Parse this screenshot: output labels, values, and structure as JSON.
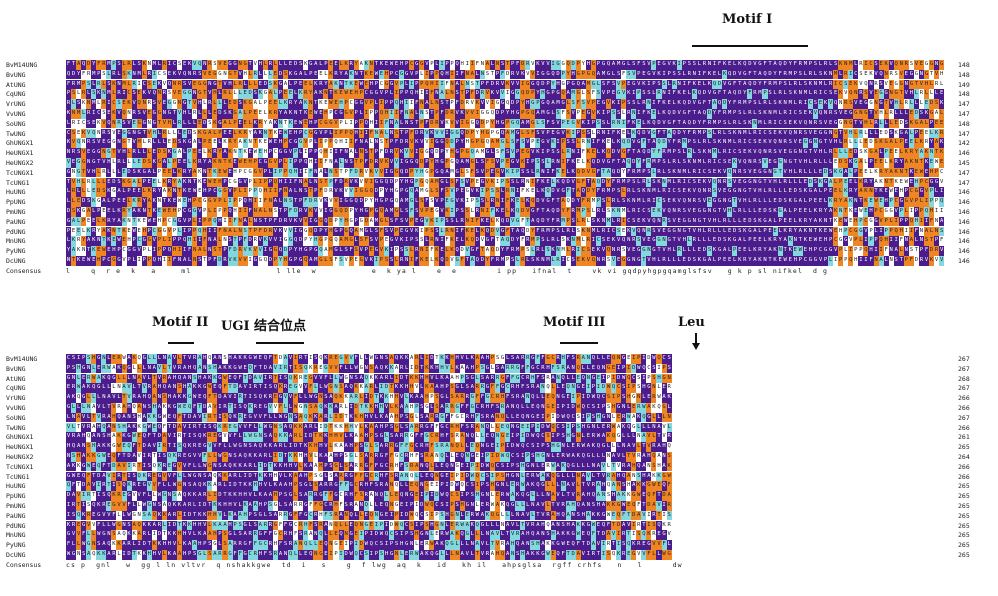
{
  "block1": {
    "motifs": [
      {
        "label": "Motif I"
      }
    ],
    "rows": [
      {
        "name": "BvM14UNG",
        "num": "148"
      },
      {
        "name": "BvUNG",
        "num": "148"
      },
      {
        "name": "AtUNG",
        "num": "149"
      },
      {
        "name": "CqUNG",
        "num": "148"
      },
      {
        "name": "VrUNG",
        "num": "147"
      },
      {
        "name": "VvUNG",
        "num": "147"
      },
      {
        "name": "SoUNG",
        "num": "148"
      },
      {
        "name": "TwUNG",
        "num": "147"
      },
      {
        "name": "GhUNGX1",
        "num": "142"
      },
      {
        "name": "HeUNGX1",
        "num": "146"
      },
      {
        "name": "HeUNGX2",
        "num": "145"
      },
      {
        "name": "TcUNGX1",
        "num": "147"
      },
      {
        "name": "TcUNG1",
        "num": "147"
      },
      {
        "name": "HuUNG",
        "num": "146"
      },
      {
        "name": "PpUNG",
        "num": "146"
      },
      {
        "name": "PmUNG",
        "num": "146"
      },
      {
        "name": "PaUNG",
        "num": "146"
      },
      {
        "name": "PdUNG",
        "num": "146"
      },
      {
        "name": "MnUNG",
        "num": "146"
      },
      {
        "name": "PyUNG",
        "num": "146"
      },
      {
        "name": "DcUNG",
        "num": "146"
      }
    ],
    "consensus_label": "Consensus",
    "consensus": "l    q  r e  k   a     ml                 l lle  w           e  k ya l    e  e        i pp   ifnal  t    vk vi gqdpyhgpgqamglsfsv   g k p sl nifkel  d g"
  },
  "block2": {
    "motifs": [
      {
        "label": "Motif II"
      },
      {
        "label": "UGI 结合位点"
      },
      {
        "label": "Motif III"
      },
      {
        "label": "Leu"
      }
    ],
    "rows": [
      {
        "name": "BvM14UNG",
        "num": "267"
      },
      {
        "name": "BvUNG",
        "num": "267"
      },
      {
        "name": "AtUNG",
        "num": "268"
      },
      {
        "name": "CqUNG",
        "num": "267"
      },
      {
        "name": "VrUNG",
        "num": "266"
      },
      {
        "name": "VvUNG",
        "num": "266"
      },
      {
        "name": "SoUNG",
        "num": "267"
      },
      {
        "name": "TwUNG",
        "num": "266"
      },
      {
        "name": "GhUNGX1",
        "num": "261"
      },
      {
        "name": "HeUNGX1",
        "num": "265"
      },
      {
        "name": "HeUNGX2",
        "num": "264"
      },
      {
        "name": "TcUNGX1",
        "num": "266"
      },
      {
        "name": "TcUNG1",
        "num": "266"
      },
      {
        "name": "HuUNG",
        "num": "265"
      },
      {
        "name": "PpUNG",
        "num": "265"
      },
      {
        "name": "PmUNG",
        "num": "265"
      },
      {
        "name": "PaUNG",
        "num": "265"
      },
      {
        "name": "PdUNG",
        "num": "265"
      },
      {
        "name": "MnUNG",
        "num": "265"
      },
      {
        "name": "PyUNG",
        "num": "265"
      },
      {
        "name": "DcUNG",
        "num": "265"
      }
    ],
    "consensus_label": "Consensus",
    "consensus": "cs p  gnl   w  gg l ln vltvr  q nshakkgwe  td  i   s    g  f lwg  aq  k   id   kh il   ahpsglsa  rgff crhfs   n   l      dw"
  },
  "sequence_seed_1": "FTAQDYFRMPSLRLSKNMLRICSEKVQNRSVEGGNGTVHLRLLLEDSKGALPEELKRYAKNTKEWEHPCGGVPLIPPQHIIFNALNSTPFDRVKVVIGGQDPYHGPGQAMGLSFSVPEGVKIPSSLRNIFKELKQDVG",
  "sequence_seed_2": "CSIPSHGNLERWAKQGLLLNAVLTVRAHQANSHAKKGWEQFTDAVIRTISQKREGVVFLLWGNSAQKKARLIDTKKHHVLKAAHPSGLSARRGFFGCRHFSRANQLLEQNGEIPIDWQ"
}
